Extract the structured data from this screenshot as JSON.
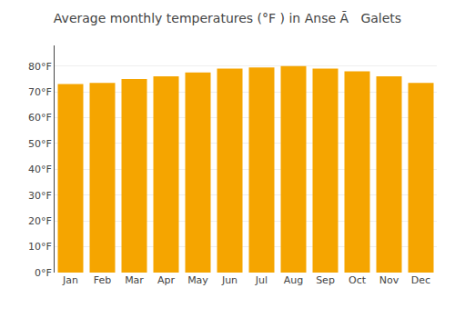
{
  "chart_data": {
    "type": "bar",
    "title": "Average monthly temperatures (°F ) in Anse Ã   Galets",
    "categories": [
      "Jan",
      "Feb",
      "Mar",
      "Apr",
      "May",
      "Jun",
      "Jul",
      "Aug",
      "Sep",
      "Oct",
      "Nov",
      "Dec"
    ],
    "values": [
      73,
      73.5,
      75,
      76,
      77.5,
      79,
      79.5,
      80,
      79,
      78,
      76,
      73.5
    ],
    "color": "#F5A500",
    "ylim": [
      0,
      88
    ],
    "yticks": [
      {
        "value": 0,
        "label": "0°F"
      },
      {
        "value": 10,
        "label": "10°F"
      },
      {
        "value": 20,
        "label": "20°F"
      },
      {
        "value": 30,
        "label": "30°F"
      },
      {
        "value": 40,
        "label": "40°F"
      },
      {
        "value": 50,
        "label": "50°F"
      },
      {
        "value": 60,
        "label": "60°F"
      },
      {
        "value": 70,
        "label": "70°F"
      },
      {
        "value": 80,
        "label": "80°F"
      }
    ],
    "grid": true
  }
}
